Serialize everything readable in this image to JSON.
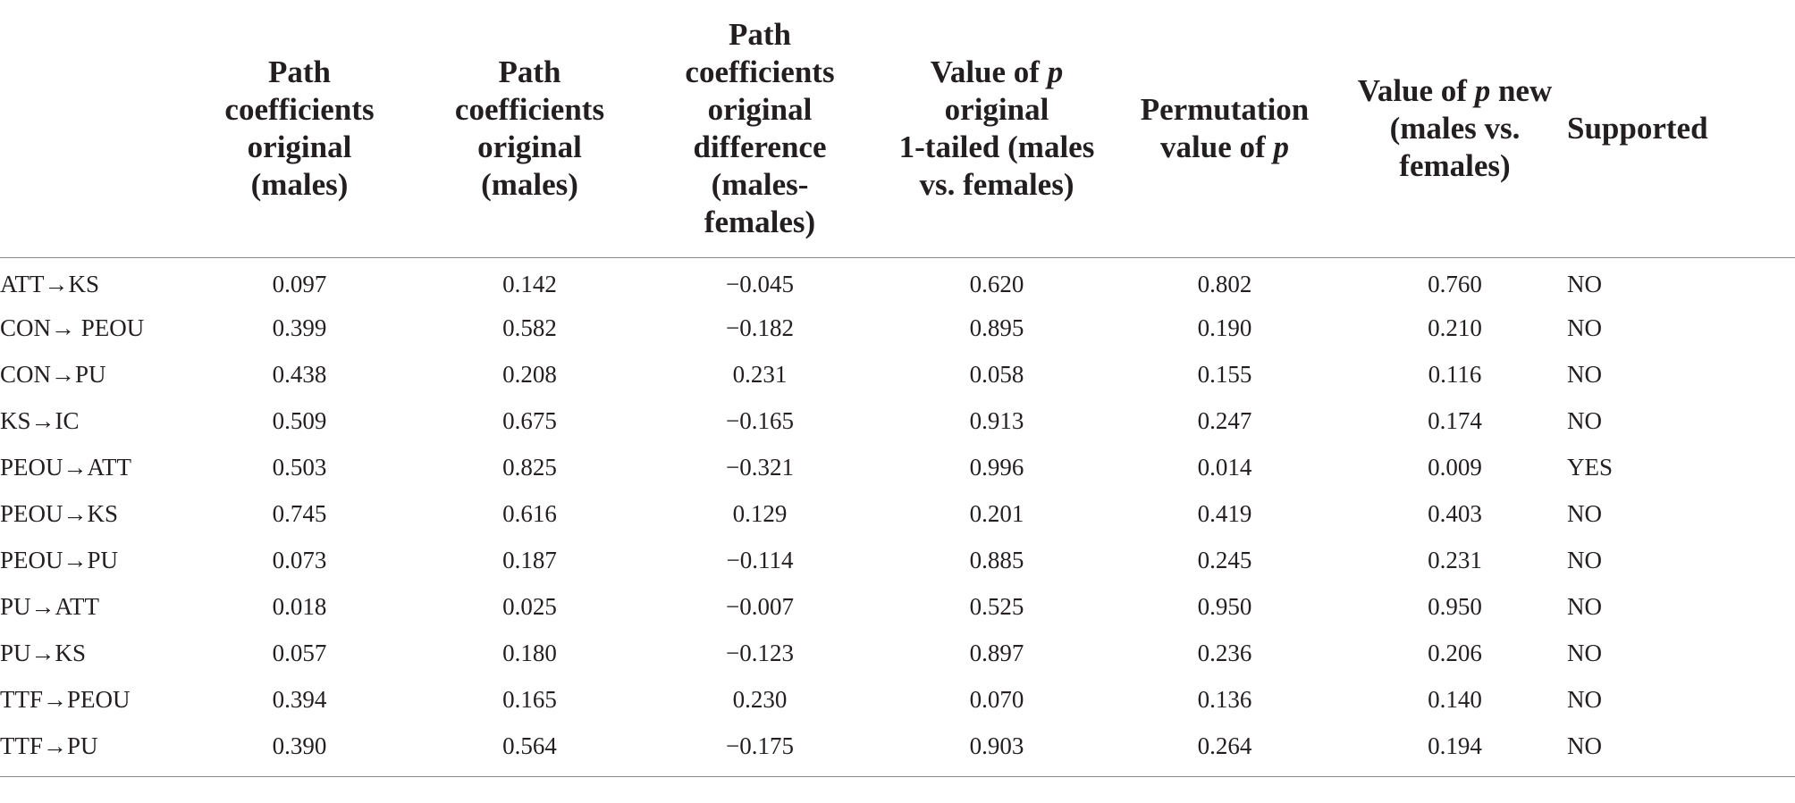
{
  "table": {
    "headers": [
      {
        "key": "path",
        "lines": [
          ""
        ]
      },
      {
        "key": "pc_males_1",
        "lines": [
          "Path",
          "coefficients",
          "original",
          "(males)"
        ]
      },
      {
        "key": "pc_males_2",
        "lines": [
          "Path",
          "coefficients",
          "original",
          "(males)"
        ]
      },
      {
        "key": "pc_diff",
        "lines": [
          "Path",
          "coefficients",
          "original",
          "difference",
          "(males-",
          "females)"
        ]
      },
      {
        "key": "p_orig",
        "lines": [
          "Value of p",
          "original",
          "1-tailed (males",
          "vs. females)"
        ]
      },
      {
        "key": "perm_p",
        "lines": [
          "Permutation",
          "value of p"
        ]
      },
      {
        "key": "p_new",
        "lines": [
          "Value of p new",
          "(males vs.",
          "females)"
        ]
      },
      {
        "key": "supported",
        "lines": [
          "Supported"
        ]
      }
    ],
    "rows": [
      {
        "path": "ATT→KS",
        "pc_males_1": "0.097",
        "pc_males_2": "0.142",
        "pc_diff": "−0.045",
        "p_orig": "0.620",
        "perm_p": "0.802",
        "p_new": "0.760",
        "supported": "NO"
      },
      {
        "path": "CON→ PEOU",
        "pc_males_1": "0.399",
        "pc_males_2": "0.582",
        "pc_diff": "−0.182",
        "p_orig": "0.895",
        "perm_p": "0.190",
        "p_new": "0.210",
        "supported": "NO"
      },
      {
        "path": "CON→PU",
        "pc_males_1": "0.438",
        "pc_males_2": "0.208",
        "pc_diff": "0.231",
        "p_orig": "0.058",
        "perm_p": "0.155",
        "p_new": "0.116",
        "supported": "NO"
      },
      {
        "path": "KS→IC",
        "pc_males_1": "0.509",
        "pc_males_2": "0.675",
        "pc_diff": "−0.165",
        "p_orig": "0.913",
        "perm_p": "0.247",
        "p_new": "0.174",
        "supported": "NO"
      },
      {
        "path": "PEOU→ATT",
        "pc_males_1": "0.503",
        "pc_males_2": "0.825",
        "pc_diff": "−0.321",
        "p_orig": "0.996",
        "perm_p": "0.014",
        "p_new": "0.009",
        "supported": "YES"
      },
      {
        "path": "PEOU→KS",
        "pc_males_1": "0.745",
        "pc_males_2": "0.616",
        "pc_diff": "0.129",
        "p_orig": "0.201",
        "perm_p": "0.419",
        "p_new": "0.403",
        "supported": "NO"
      },
      {
        "path": "PEOU→PU",
        "pc_males_1": "0.073",
        "pc_males_2": "0.187",
        "pc_diff": "−0.114",
        "p_orig": "0.885",
        "perm_p": "0.245",
        "p_new": "0.231",
        "supported": "NO"
      },
      {
        "path": "PU→ATT",
        "pc_males_1": "0.018",
        "pc_males_2": "0.025",
        "pc_diff": "−0.007",
        "p_orig": "0.525",
        "perm_p": "0.950",
        "p_new": "0.950",
        "supported": "NO"
      },
      {
        "path": "PU→KS",
        "pc_males_1": "0.057",
        "pc_males_2": "0.180",
        "pc_diff": "−0.123",
        "p_orig": "0.897",
        "perm_p": "0.236",
        "p_new": "0.206",
        "supported": "NO"
      },
      {
        "path": "TTF→PEOU",
        "pc_males_1": "0.394",
        "pc_males_2": "0.165",
        "pc_diff": "0.230",
        "p_orig": "0.070",
        "perm_p": "0.136",
        "p_new": "0.140",
        "supported": "NO"
      },
      {
        "path": "TTF→PU",
        "pc_males_1": "0.390",
        "pc_males_2": "0.564",
        "pc_diff": "−0.175",
        "p_orig": "0.903",
        "perm_p": "0.264",
        "p_new": "0.194",
        "supported": "NO"
      }
    ]
  }
}
